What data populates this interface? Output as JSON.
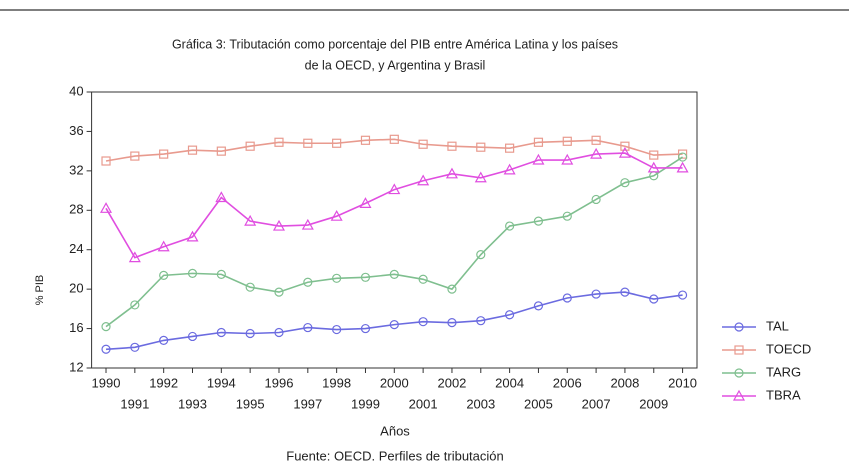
{
  "chart_data": {
    "type": "line",
    "title_lines": [
      "Gráfica 3: Tributación como porcentaje del PIB entre América Latina y los países",
      "de la OECD, y Argentina y Brasil"
    ],
    "xlabel": "Años",
    "ylabel": "% PIB",
    "source": "Fuente: OECD. Perfiles de tributación",
    "x": [
      1990,
      1991,
      1992,
      1993,
      1994,
      1995,
      1996,
      1997,
      1998,
      1999,
      2000,
      2001,
      2002,
      2003,
      2004,
      2005,
      2006,
      2007,
      2008,
      2009,
      2010
    ],
    "xlim": [
      1989.5,
      2010.5
    ],
    "xticks": [
      1990,
      1991,
      1992,
      1993,
      1994,
      1995,
      1996,
      1997,
      1998,
      1999,
      2000,
      2001,
      2002,
      2003,
      2004,
      2005,
      2006,
      2007,
      2008,
      2009,
      2010
    ],
    "ylim": [
      12,
      40
    ],
    "yticks": [
      12,
      16,
      20,
      24,
      28,
      32,
      36,
      40
    ],
    "grid": false,
    "legend": "right",
    "series": [
      {
        "name": "TAL",
        "color": "#6b6be0",
        "marker": "circle",
        "values": [
          13.9,
          14.1,
          14.8,
          15.2,
          15.6,
          15.5,
          15.6,
          16.1,
          15.9,
          16.0,
          16.4,
          16.7,
          16.6,
          16.8,
          17.4,
          18.3,
          19.1,
          19.5,
          19.7,
          19.0,
          19.4
        ]
      },
      {
        "name": "TOECD",
        "color": "#e89a8e",
        "marker": "square",
        "values": [
          33.0,
          33.5,
          33.7,
          34.1,
          34.0,
          34.5,
          34.9,
          34.8,
          34.8,
          35.1,
          35.2,
          34.7,
          34.5,
          34.4,
          34.3,
          34.9,
          35.0,
          35.1,
          34.5,
          33.6,
          33.7
        ]
      },
      {
        "name": "TARG",
        "color": "#7fbf8f",
        "marker": "circle",
        "values": [
          16.2,
          18.4,
          21.4,
          21.6,
          21.5,
          20.2,
          19.7,
          20.7,
          21.1,
          21.2,
          21.5,
          21.0,
          20.0,
          23.5,
          26.4,
          26.9,
          27.4,
          29.1,
          30.8,
          31.5,
          33.4
        ]
      },
      {
        "name": "TBRA",
        "color": "#e04ee0",
        "marker": "triangle",
        "values": [
          28.2,
          23.2,
          24.3,
          25.3,
          29.3,
          26.9,
          26.4,
          26.5,
          27.4,
          28.7,
          30.1,
          31.0,
          31.7,
          31.3,
          32.1,
          33.1,
          33.1,
          33.7,
          33.8,
          32.3,
          32.3
        ]
      }
    ]
  }
}
